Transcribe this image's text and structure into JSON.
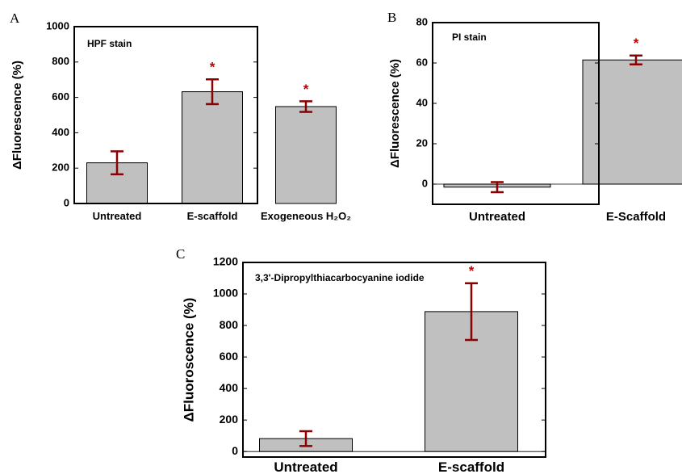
{
  "colors": {
    "bar_fill": "#c0c0c0",
    "bar_stroke": "#000000",
    "error": "#8b0000",
    "star": "#c00000"
  },
  "chart_data": [
    {
      "panel": "A",
      "type": "bar",
      "annotation": "HPF stain",
      "ylabel": "ΔFluorescence (%)",
      "ylim": [
        0,
        1000
      ],
      "yticks": [
        0,
        200,
        400,
        600,
        800,
        1000
      ],
      "categories": [
        "Untreated",
        "E-scaffold",
        "Exogeneous H₂O₂"
      ],
      "values": [
        230,
        632,
        548
      ],
      "errors": [
        65,
        70,
        30
      ],
      "significant": [
        "",
        "*",
        "*"
      ]
    },
    {
      "panel": "B",
      "type": "bar",
      "annotation": "PI stain",
      "ylabel": "ΔFluorescence (%)",
      "ylim": [
        -10,
        80
      ],
      "yticks": [
        0,
        20,
        40,
        60,
        80
      ],
      "categories": [
        "Untreated",
        "E-Scaffold"
      ],
      "values": [
        -1.5,
        61.5
      ],
      "errors": [
        2.5,
        2.2
      ],
      "significant": [
        "",
        "*"
      ]
    },
    {
      "panel": "C",
      "type": "bar",
      "annotation": "3,3'-Dipropylthiacarbocyanine iodide",
      "ylabel": "ΔFluoroscence (%)",
      "ylim": [
        -35,
        1200
      ],
      "yticks": [
        0,
        200,
        400,
        600,
        800,
        1000,
        1200
      ],
      "categories": [
        "Untreated",
        "E-scaffold"
      ],
      "values": [
        82,
        888
      ],
      "errors": [
        47,
        180
      ],
      "significant": [
        "",
        "*"
      ]
    }
  ]
}
